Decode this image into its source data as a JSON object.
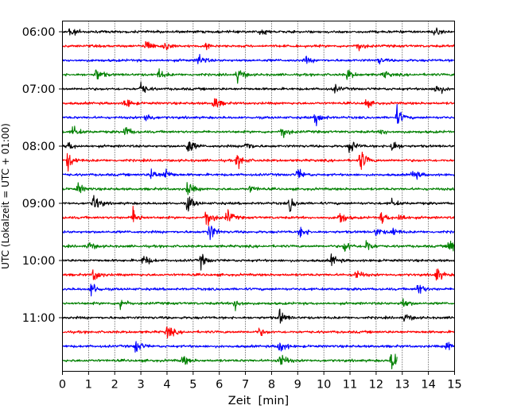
{
  "chart_data": {
    "type": "line",
    "title": "",
    "xlabel": "Zeit  [min]",
    "ylabel": "UTC (Lokalzeit = UTC + 01:00)",
    "xlim": [
      0,
      15
    ],
    "x_ticks": [
      0,
      1,
      2,
      3,
      4,
      5,
      6,
      7,
      8,
      9,
      10,
      11,
      12,
      13,
      14,
      15
    ],
    "x_tick_labels": [
      "0",
      "1",
      "2",
      "3",
      "4",
      "5",
      "6",
      "7",
      "8",
      "9",
      "10",
      "11",
      "12",
      "13",
      "14",
      "15"
    ],
    "y_tick_labels": [
      "06:00",
      "07:00",
      "08:00",
      "09:00",
      "10:00",
      "11:00"
    ],
    "y_tick_rows": [
      0,
      4,
      8,
      12,
      16,
      20
    ],
    "grid": "vertical dotted",
    "legend": "none",
    "color_cycle": [
      "#000000",
      "#ff0000",
      "#0000ff",
      "#008000"
    ],
    "series": [
      {
        "start": "06:00",
        "end_min": 15,
        "color": "#000000",
        "events": [
          [
            0.3,
            0.9
          ],
          [
            7.6,
            0.6
          ],
          [
            14.2,
            0.7
          ]
        ]
      },
      {
        "start": "06:15",
        "end_min": 15,
        "color": "#ff0000",
        "events": [
          [
            3.2,
            1.2
          ],
          [
            3.9,
            1.0
          ],
          [
            11.3,
            0.9
          ],
          [
            5.5,
            0.5
          ]
        ]
      },
      {
        "start": "06:30",
        "end_min": 15,
        "color": "#0000ff",
        "events": [
          [
            5.2,
            1.1
          ],
          [
            9.3,
            0.6
          ],
          [
            12.1,
            0.5
          ]
        ]
      },
      {
        "start": "06:45",
        "end_min": 15,
        "color": "#008000",
        "events": [
          [
            1.3,
            1.2
          ],
          [
            3.7,
            0.8
          ],
          [
            6.7,
            1.4
          ],
          [
            10.9,
            0.9
          ],
          [
            12.3,
            0.6
          ]
        ]
      },
      {
        "start": "07:00",
        "end_min": 15,
        "color": "#000000",
        "events": [
          [
            3.0,
            1.1
          ],
          [
            10.4,
            0.6
          ],
          [
            14.3,
            1.3
          ]
        ]
      },
      {
        "start": "07:15",
        "end_min": 15,
        "color": "#ff0000",
        "events": [
          [
            2.4,
            1.0
          ],
          [
            5.8,
            1.2
          ],
          [
            11.6,
            0.7
          ]
        ]
      },
      {
        "start": "07:30",
        "end_min": 15,
        "color": "#0000ff",
        "events": [
          [
            3.2,
            0.9
          ],
          [
            9.7,
            1.4
          ],
          [
            12.8,
            1.5
          ]
        ]
      },
      {
        "start": "07:45",
        "end_min": 15,
        "color": "#008000",
        "events": [
          [
            0.4,
            1.0
          ],
          [
            2.4,
            1.0
          ],
          [
            8.4,
            1.3
          ],
          [
            12.2,
            0.5
          ]
        ]
      },
      {
        "start": "08:00",
        "end_min": 15,
        "color": "#000000",
        "events": [
          [
            0.2,
            0.8
          ],
          [
            4.8,
            1.5
          ],
          [
            7.0,
            1.0
          ],
          [
            11.0,
            1.3
          ],
          [
            12.6,
            1.2
          ]
        ]
      },
      {
        "start": "08:15",
        "end_min": 15,
        "color": "#ff0000",
        "events": [
          [
            0.2,
            1.5
          ],
          [
            6.7,
            1.4
          ],
          [
            11.4,
            2.0
          ]
        ]
      },
      {
        "start": "08:30",
        "end_min": 15,
        "color": "#0000ff",
        "events": [
          [
            3.4,
            1.0
          ],
          [
            3.9,
            1.2
          ],
          [
            9.0,
            1.0
          ],
          [
            13.4,
            1.1
          ]
        ]
      },
      {
        "start": "08:45",
        "end_min": 15,
        "color": "#008000",
        "events": [
          [
            0.6,
            0.9
          ],
          [
            4.8,
            1.3
          ],
          [
            7.2,
            0.6
          ]
        ]
      },
      {
        "start": "09:00",
        "end_min": 15,
        "color": "#000000",
        "events": [
          [
            1.2,
            1.6
          ],
          [
            4.8,
            1.5
          ],
          [
            8.7,
            1.2
          ],
          [
            12.6,
            0.6
          ]
        ]
      },
      {
        "start": "09:15",
        "end_min": 15,
        "color": "#ff0000",
        "events": [
          [
            2.7,
            1.5
          ],
          [
            5.5,
            2.1
          ],
          [
            6.3,
            1.3
          ],
          [
            10.6,
            1.3
          ],
          [
            12.2,
            1.0
          ],
          [
            12.9,
            0.8
          ]
        ]
      },
      {
        "start": "09:30",
        "end_min": 15,
        "color": "#0000ff",
        "events": [
          [
            5.6,
            1.8
          ],
          [
            9.1,
            1.0
          ],
          [
            12.0,
            0.8
          ],
          [
            12.6,
            0.8
          ]
        ]
      },
      {
        "start": "09:45",
        "end_min": 15,
        "color": "#008000",
        "events": [
          [
            1.0,
            0.8
          ],
          [
            10.8,
            1.1
          ],
          [
            11.6,
            1.3
          ],
          [
            14.8,
            1.8
          ]
        ]
      },
      {
        "start": "10:00",
        "end_min": 15,
        "color": "#000000",
        "events": [
          [
            3.1,
            1.1
          ],
          [
            5.3,
            1.1
          ],
          [
            10.3,
            1.0
          ]
        ]
      },
      {
        "start": "10:15",
        "end_min": 15,
        "color": "#ff0000",
        "events": [
          [
            1.2,
            1.2
          ],
          [
            11.2,
            1.1
          ],
          [
            14.3,
            1.3
          ]
        ]
      },
      {
        "start": "10:30",
        "end_min": 15,
        "color": "#0000ff",
        "events": [
          [
            1.1,
            1.3
          ],
          [
            13.6,
            1.2
          ]
        ]
      },
      {
        "start": "10:45",
        "end_min": 15,
        "color": "#008000",
        "events": [
          [
            2.2,
            1.1
          ],
          [
            6.6,
            1.1
          ],
          [
            13.0,
            1.0
          ]
        ]
      },
      {
        "start": "11:00",
        "end_min": 15,
        "color": "#000000",
        "events": [
          [
            8.3,
            1.3
          ],
          [
            13.1,
            0.8
          ]
        ]
      },
      {
        "start": "11:15",
        "end_min": 15,
        "color": "#ff0000",
        "events": [
          [
            4.0,
            1.3
          ],
          [
            7.5,
            0.7
          ]
        ]
      },
      {
        "start": "11:30",
        "end_min": 15,
        "color": "#0000ff",
        "events": [
          [
            2.8,
            1.3
          ],
          [
            8.3,
            1.4
          ],
          [
            14.7,
            0.9
          ]
        ]
      },
      {
        "start": "11:45",
        "end_min": 12.8,
        "color": "#008000",
        "events": [
          [
            4.6,
            0.9
          ],
          [
            8.3,
            1.8
          ],
          [
            12.6,
            2.2
          ]
        ]
      }
    ]
  }
}
